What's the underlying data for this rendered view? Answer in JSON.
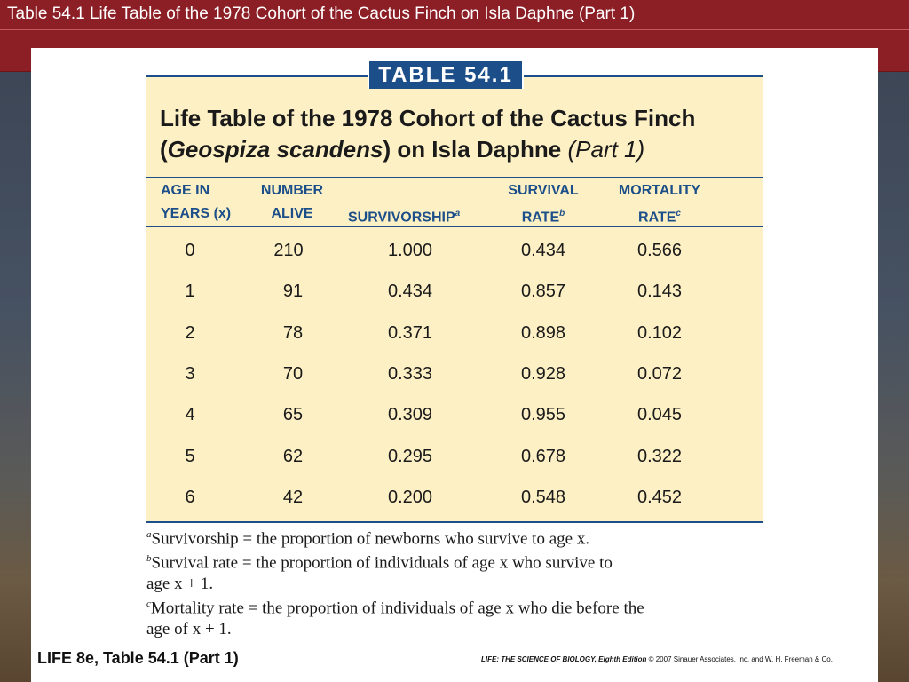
{
  "slide": {
    "title": "Table 54.1  Life Table of the 1978 Cohort of the Cactus Finch on Isla Daphne (Part 1)"
  },
  "table": {
    "tag": "TABLE 54.1",
    "caption_line1": "Life Table of the 1978 Cohort of the Cactus Finch",
    "caption_line2_open": "(",
    "caption_line2_species": "Geospiza scandens",
    "caption_line2_rest": ") on Isla Daphne",
    "caption_line2_part": "(Part 1)",
    "headers": {
      "age_l1": "AGE IN",
      "age_l2": "YEARS (x)",
      "number_l1": "NUMBER",
      "number_l2": "ALIVE",
      "survivorship": "SURVIVORSHIP",
      "survivorship_sup": "a",
      "survival_l1": "SURVIVAL",
      "survival_l2": "RATE",
      "survival_sup": "b",
      "mortality_l1": "MORTALITY",
      "mortality_l2": "RATE",
      "mortality_sup": "c"
    },
    "rows": [
      {
        "age": "0",
        "alive": "210",
        "survivorship": "1.000",
        "survival": "0.434",
        "mortality": "0.566"
      },
      {
        "age": "1",
        "alive": "91",
        "survivorship": "0.434",
        "survival": "0.857",
        "mortality": "0.143"
      },
      {
        "age": "2",
        "alive": "78",
        "survivorship": "0.371",
        "survival": "0.898",
        "mortality": "0.102"
      },
      {
        "age": "3",
        "alive": "70",
        "survivorship": "0.333",
        "survival": "0.928",
        "mortality": "0.072"
      },
      {
        "age": "4",
        "alive": "65",
        "survivorship": "0.309",
        "survival": "0.955",
        "mortality": "0.045"
      },
      {
        "age": "5",
        "alive": "62",
        "survivorship": "0.295",
        "survival": "0.678",
        "mortality": "0.322"
      },
      {
        "age": "6",
        "alive": "42",
        "survivorship": "0.200",
        "survival": "0.548",
        "mortality": "0.452"
      }
    ]
  },
  "footnotes": {
    "a_mark": "a",
    "a_text": "Survivorship = the proportion of newborns who survive to age x.",
    "b_mark": "b",
    "b_text_l1": "Survival rate = the proportion of individuals of age x who survive to",
    "b_text_l2": "age x + 1.",
    "c_mark": "c",
    "c_text_l1": "Mortality rate = the proportion of individuals of age x who die before the",
    "c_text_l2": "age of x + 1."
  },
  "footer": {
    "left": "LIFE 8e, Table 54.1 (Part 1)",
    "right_book": "LIFE: THE SCIENCE OF BIOLOGY, Eighth Edition",
    "right_copy": " © 2007 Sinauer Associates, Inc. and W. H. Freeman & Co."
  }
}
